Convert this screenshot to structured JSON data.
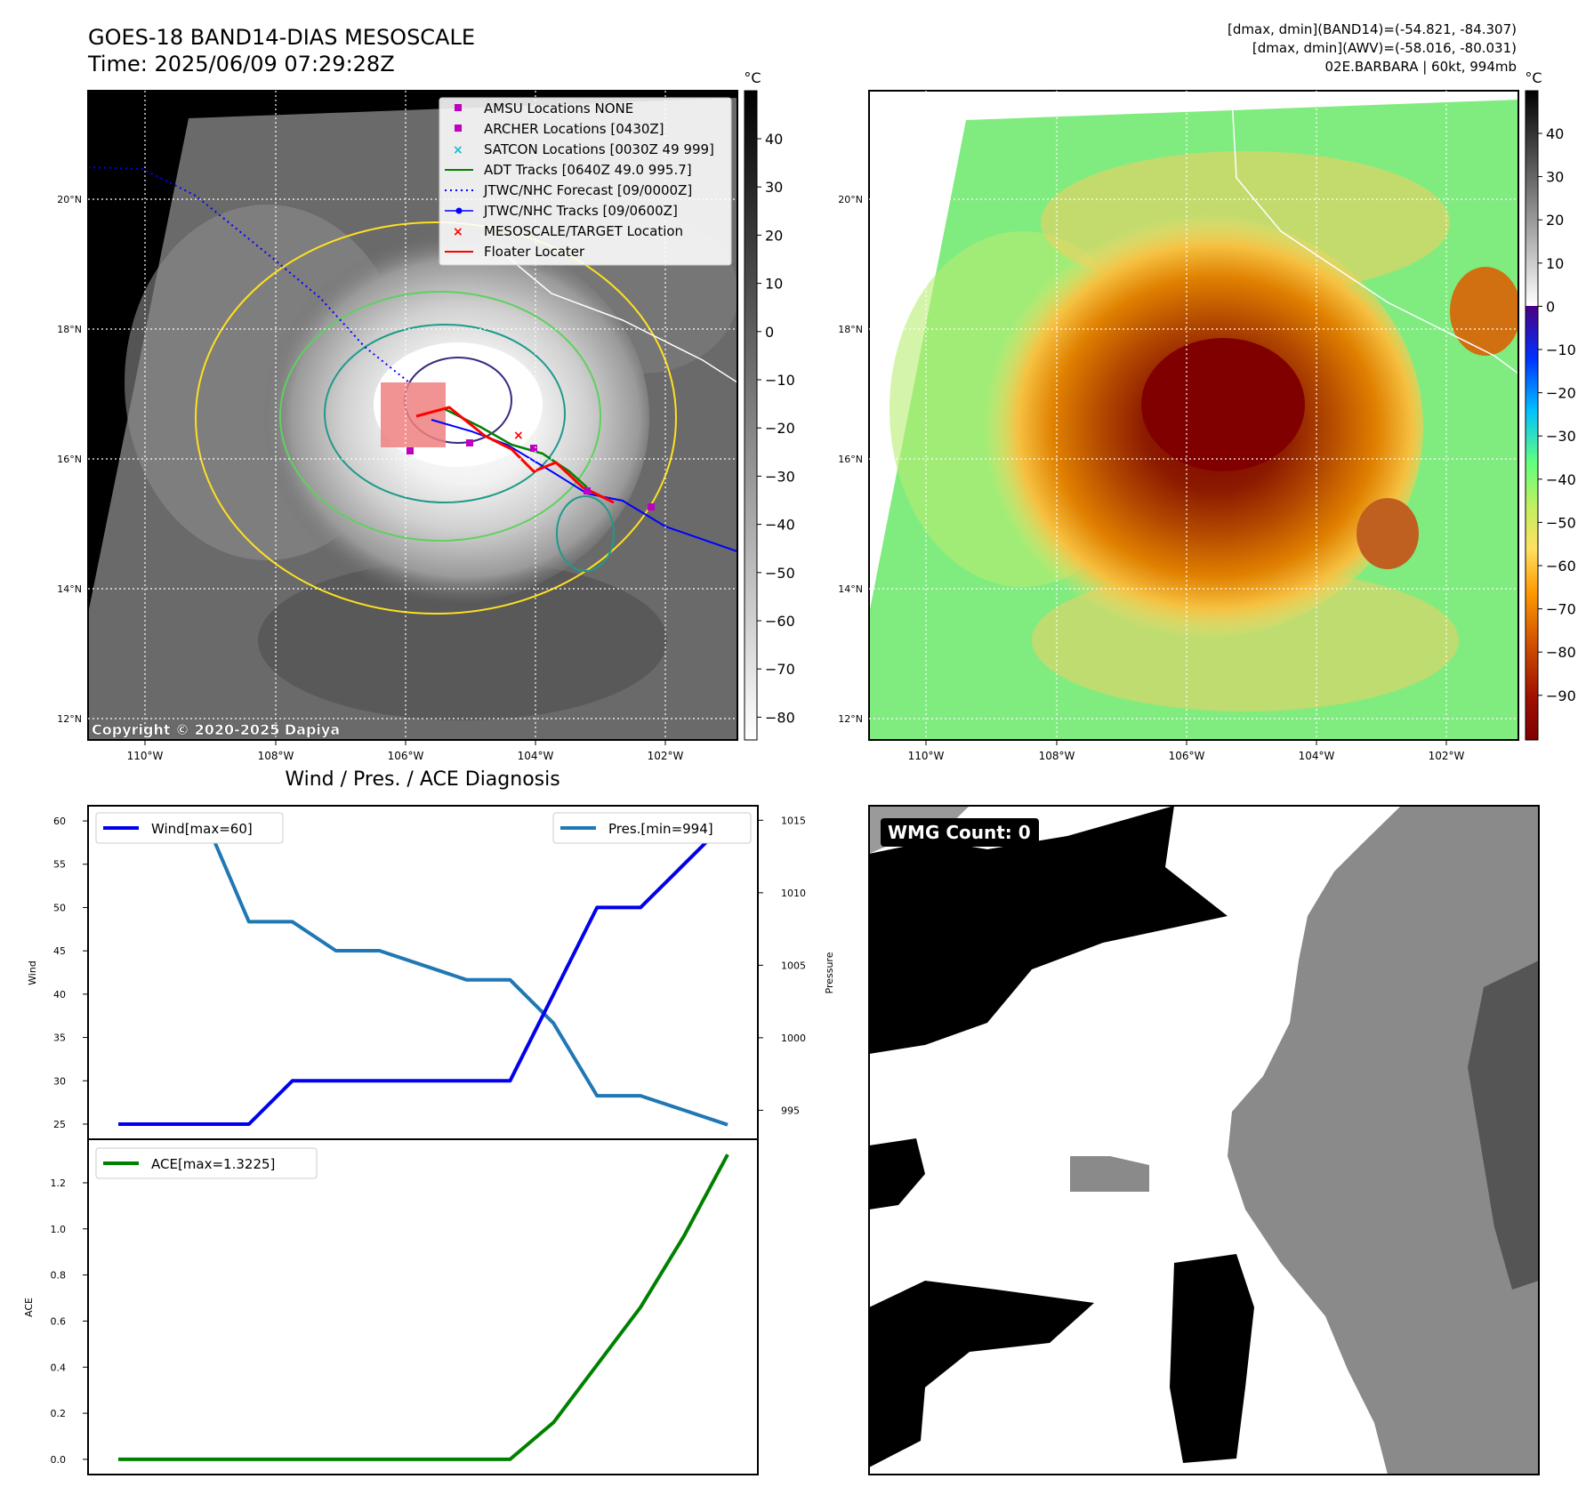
{
  "header": {
    "title_line1": "GOES-18 BAND14-DIAS MESOSCALE",
    "title_line2": "Time: 2025/06/09 07:29:28Z",
    "info_line1": "[dmax, dmin](BAND14)=(-54.821, -84.307)",
    "info_line2": "[dmax, dmin](AWV)=(-58.016, -80.031)",
    "info_line3": "02E.BARBARA | 60kt, 994mb"
  },
  "map_axes": {
    "lon_ticks": [
      "110°W",
      "108°W",
      "106°W",
      "104°W",
      "102°W"
    ],
    "lat_ticks": [
      "20°N",
      "18°N",
      "16°N",
      "14°N",
      "12°N"
    ],
    "copyright": "Copyright © 2020-2025 Dapiya"
  },
  "colors": {
    "wind": "#0000ee",
    "pressure": "#1f77b4",
    "ace": "#008000",
    "jtwc": "#0000ff",
    "floater": "#ff0000",
    "adt": "#008000",
    "markers": "#c000c0",
    "satcon": "#17becf"
  },
  "legend": {
    "items": [
      "AMSU Locations NONE",
      "ARCHER Locations [0430Z]",
      "SATCON Locations [0030Z 49 999]",
      "ADT Tracks [0640Z 49.0 995.7]",
      "JTWC/NHC Forecast [09/0000Z]",
      "JTWC/NHC Tracks [09/0600Z]",
      "MESOSCALE/TARGET Location",
      "Floater Locater"
    ]
  },
  "colorbar_left": {
    "unit": "°C",
    "ticks": [
      "40",
      "30",
      "20",
      "10",
      "0",
      "−10",
      "−20",
      "−30",
      "−40",
      "−50",
      "−60",
      "−70",
      "−80"
    ]
  },
  "colorbar_right": {
    "unit": "°C",
    "ticks": [
      "40",
      "30",
      "20",
      "10",
      "0",
      "−10",
      "−20",
      "−30",
      "−40",
      "−50",
      "−60",
      "−70",
      "−80",
      "−90"
    ]
  },
  "diagnosis": {
    "title": "Wind / Pres. / ACE Diagnosis",
    "wind_label": "Wind",
    "pressure_label": "Pressure",
    "ace_label": "ACE",
    "wind_legend": "Wind[max=60]",
    "pressure_legend": "Pres.[min=994]",
    "ace_legend": "ACE[max=1.3225]",
    "wind_ticks": [
      "60",
      "55",
      "50",
      "45",
      "40",
      "35",
      "30",
      "25"
    ],
    "pressure_ticks": [
      "1015",
      "1010",
      "1005",
      "1000",
      "995"
    ],
    "ace_ticks": [
      "1.2",
      "1.0",
      "0.8",
      "0.6",
      "0.4",
      "0.2",
      "0.0"
    ]
  },
  "wmg": {
    "label": "WMG Count: 0"
  },
  "chart_data": [
    {
      "type": "line",
      "name": "wind",
      "x": [
        0,
        1,
        2,
        3,
        4,
        5,
        6,
        7,
        8,
        9,
        10,
        11,
        12,
        13,
        14
      ],
      "series": [
        {
          "name": "Wind[max=60]",
          "values": [
            25,
            25,
            25,
            25,
            30,
            30,
            30,
            30,
            30,
            30,
            40,
            50,
            50,
            55,
            60
          ]
        }
      ],
      "ylabel": "Wind",
      "ylim": [
        23.25,
        61.75
      ]
    },
    {
      "type": "line",
      "name": "pressure",
      "x": [
        0,
        1,
        2,
        3,
        4,
        5,
        6,
        7,
        8,
        9,
        10,
        11,
        12,
        13,
        14
      ],
      "series": [
        {
          "name": "Pres.[min=994]",
          "values": [
            1015,
            1015,
            1015,
            1008,
            1008,
            1006,
            1006,
            1005,
            1004,
            1004,
            1001,
            996,
            996,
            995,
            994
          ]
        }
      ],
      "ylabel": "Pressure",
      "ylim": [
        993,
        1016
      ]
    },
    {
      "type": "line",
      "name": "ace",
      "x": [
        0,
        1,
        2,
        3,
        4,
        5,
        6,
        7,
        8,
        9,
        10,
        11,
        12,
        13,
        14
      ],
      "series": [
        {
          "name": "ACE[max=1.3225]",
          "values": [
            0,
            0,
            0,
            0,
            0,
            0,
            0,
            0,
            0,
            0,
            0.16,
            0.41,
            0.66,
            0.97,
            1.3225
          ]
        }
      ],
      "ylabel": "ACE",
      "ylim": [
        -0.066,
        1.389
      ]
    }
  ]
}
